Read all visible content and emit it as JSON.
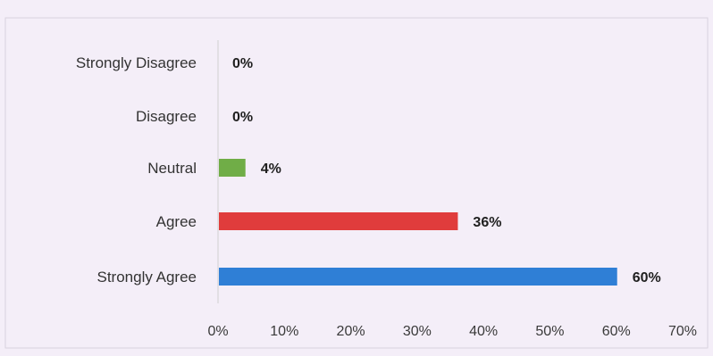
{
  "chart_data": {
    "type": "bar",
    "orientation": "horizontal",
    "title": "",
    "xlabel": "",
    "ylabel": "",
    "categories": [
      "Strongly Disagree",
      "Disagree",
      "Neutral",
      "Agree",
      "Strongly Agree"
    ],
    "values": [
      0,
      0,
      4,
      36,
      60
    ],
    "value_labels": [
      "0%",
      "0%",
      "4%",
      "36%",
      "60%"
    ],
    "bar_colors": [
      "#70ad47",
      "#70ad47",
      "#70ad47",
      "#e03c3c",
      "#2f7fd6"
    ],
    "xlim": [
      0,
      70
    ],
    "xticks": [
      0,
      10,
      20,
      30,
      40,
      50,
      60,
      70
    ],
    "xtick_labels": [
      "0%",
      "10%",
      "20%",
      "30%",
      "40%",
      "50%",
      "60%",
      "70%"
    ],
    "grid": false,
    "legend": "none"
  },
  "colors": {
    "background": "#f4eef8",
    "frame": "#d9d2de",
    "axis": "#d0d0d0"
  }
}
